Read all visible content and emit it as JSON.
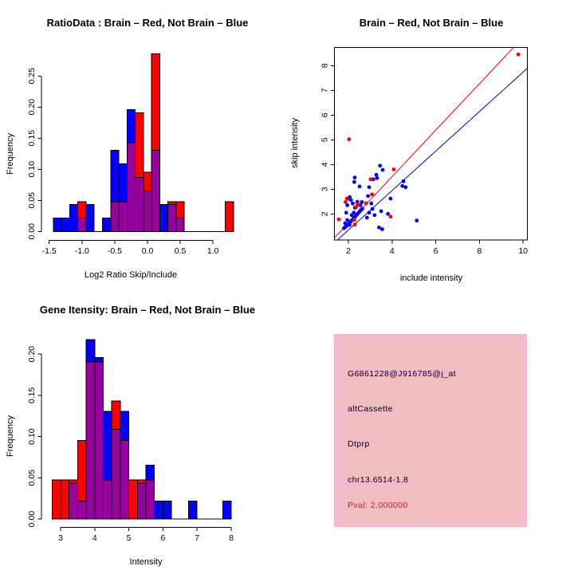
{
  "colors": {
    "red": "#ff0000",
    "blue": "#0000ff",
    "overlap_purple": "#98009d",
    "axis": "#000000",
    "info_box_pink": "#ffc0cb",
    "pval_red": "#b22233"
  },
  "chart_data": [
    {
      "type": "bar",
      "subtype": "overlaid-histogram",
      "title": "RatioData : Brain – Red, Not Brain – Blue",
      "xlabel": "Log2 Ratio Skip/Include",
      "ylabel": "Frequency",
      "xlim": [
        -1.62,
        1.43
      ],
      "ylim": [
        0,
        0.2857
      ],
      "xticks": [
        -1.5,
        -1.0,
        -0.5,
        0.0,
        0.5,
        1.0
      ],
      "xtick_labels": [
        "-1.5",
        "-1.0",
        "-0.5",
        "0.0",
        "0.5",
        "1.0"
      ],
      "yticks": [
        0.0,
        0.05,
        0.1,
        0.15,
        0.2,
        0.25
      ],
      "ytick_labels": [
        "0.00",
        "0.05",
        "0.10",
        "0.15",
        "0.20",
        "0.25"
      ],
      "grid": false,
      "legend": "encoded in title: Brain = red, Not Brain = blue, overlap = purple",
      "bin_width": 0.125,
      "series": [
        {
          "name": "Brain",
          "color": "#ff0000"
        },
        {
          "name": "Not Brain",
          "color": "#0000ff"
        }
      ],
      "bins": [
        {
          "x0": -1.4375,
          "blue": 0.0217,
          "red": 0
        },
        {
          "x0": -1.3125,
          "blue": 0.0217,
          "red": 0
        },
        {
          "x0": -1.1875,
          "blue": 0.0435,
          "red": 0
        },
        {
          "x0": -1.0625,
          "blue": 0.0217,
          "red": 0.0476
        },
        {
          "x0": -0.9375,
          "blue": 0.0435,
          "red": 0
        },
        {
          "x0": -0.8125,
          "blue": 0,
          "red": 0
        },
        {
          "x0": -0.6875,
          "blue": 0.0217,
          "red": 0
        },
        {
          "x0": -0.5625,
          "blue": 0.1304,
          "red": 0.0476
        },
        {
          "x0": -0.4375,
          "blue": 0.1087,
          "red": 0.0476
        },
        {
          "x0": -0.3125,
          "blue": 0.1957,
          "red": 0.1429
        },
        {
          "x0": -0.1875,
          "blue": 0.087,
          "red": 0.1905
        },
        {
          "x0": -0.0625,
          "blue": 0.0652,
          "red": 0.0952
        },
        {
          "x0": 0.0625,
          "blue": 0.1304,
          "red": 0.2857
        },
        {
          "x0": 0.1875,
          "blue": 0.0435,
          "red": 0
        },
        {
          "x0": 0.3125,
          "blue": 0.0435,
          "red": 0.0476
        },
        {
          "x0": 0.4375,
          "blue": 0.0217,
          "red": 0.0476
        },
        {
          "x0": 0.5625,
          "blue": 0,
          "red": 0
        },
        {
          "x0": 0.6875,
          "blue": 0,
          "red": 0
        },
        {
          "x0": 0.8125,
          "blue": 0,
          "red": 0
        },
        {
          "x0": 0.9375,
          "blue": 0,
          "red": 0
        },
        {
          "x0": 1.0625,
          "blue": 0,
          "red": 0
        },
        {
          "x0": 1.1875,
          "blue": 0,
          "red": 0.0476
        }
      ]
    },
    {
      "type": "scatter",
      "title": "Brain – Red, Not Brain – Blue",
      "xlabel": "include intensity",
      "ylabel": "skip intensity",
      "xlim": [
        1.35,
        10.2
      ],
      "ylim": [
        0.95,
        8.74
      ],
      "xticks": [
        2,
        4,
        6,
        8,
        10
      ],
      "xtick_labels": [
        "2",
        "4",
        "6",
        "8",
        "10"
      ],
      "yticks": [
        2,
        3,
        4,
        5,
        6,
        7,
        8
      ],
      "ytick_labels": [
        "2",
        "3",
        "4",
        "5",
        "6",
        "7",
        "8"
      ],
      "grid": false,
      "box": true,
      "lines": [
        {
          "name": "brain-fit-line",
          "color": "#ff0000",
          "points": [
            [
              1.354,
              1.023
            ],
            [
              9.564,
              8.74
            ]
          ]
        },
        {
          "name": "notbrain-fit-line",
          "color": "#0000cd",
          "points": [
            [
              1.506,
              0.95
            ],
            [
              10.2,
              7.9
            ]
          ]
        }
      ],
      "series": [
        {
          "name": "Not Brain",
          "color": "#0000ff",
          "points": [
            [
              1.8,
              1.42
            ],
            [
              1.86,
              1.47
            ],
            [
              1.92,
              1.52
            ],
            [
              1.98,
              1.57
            ],
            [
              2.04,
              1.62
            ],
            [
              2.1,
              1.68
            ],
            [
              2.16,
              1.74
            ],
            [
              2.22,
              1.8
            ],
            [
              2.28,
              1.86
            ],
            [
              2.34,
              1.92
            ],
            [
              2.4,
              1.98
            ],
            [
              2.46,
              2.04
            ],
            [
              2.52,
              2.1
            ],
            [
              2.58,
              2.16
            ],
            [
              2.64,
              2.21
            ],
            [
              1.85,
              1.62
            ],
            [
              1.95,
              1.75
            ],
            [
              2.05,
              1.55
            ],
            [
              2.15,
              1.95
            ],
            [
              2.25,
              2.05
            ],
            [
              1.9,
              2.05
            ],
            [
              1.95,
              2.35
            ],
            [
              2.0,
              2.62
            ],
            [
              2.06,
              2.68
            ],
            [
              2.12,
              2.56
            ],
            [
              2.2,
              2.42
            ],
            [
              2.41,
              2.49
            ],
            [
              2.55,
              2.35
            ],
            [
              2.62,
              2.48
            ],
            [
              2.3,
              2.25
            ],
            [
              2.9,
              2.72
            ],
            [
              2.95,
              2.05
            ],
            [
              2.85,
              1.85
            ],
            [
              3.05,
              2.42
            ],
            [
              3.1,
              2.2
            ],
            [
              3.2,
              1.95
            ],
            [
              3.5,
              2.11
            ],
            [
              3.81,
              2.0
            ],
            [
              3.93,
              2.62
            ],
            [
              2.27,
              3.29
            ],
            [
              2.29,
              3.47
            ],
            [
              2.51,
              3.11
            ],
            [
              2.95,
              3.08
            ],
            [
              3.14,
              3.4
            ],
            [
              3.31,
              3.45
            ],
            [
              3.28,
              3.58
            ],
            [
              3.45,
              3.95
            ],
            [
              3.57,
              3.78
            ],
            [
              4.47,
              3.13
            ],
            [
              4.52,
              3.32
            ],
            [
              4.62,
              3.08
            ],
            [
              3.4,
              1.45
            ],
            [
              3.55,
              1.38
            ],
            [
              5.13,
              1.73
            ]
          ]
        },
        {
          "name": "Brain",
          "color": "#ff0000",
          "points": [
            [
              2.03,
              5.02
            ],
            [
              9.78,
              8.45
            ],
            [
              4.08,
              3.8
            ],
            [
              3.02,
              3.4
            ],
            [
              3.08,
              2.79
            ],
            [
              2.81,
              2.43
            ],
            [
              2.35,
              2.27
            ],
            [
              2.42,
              2.38
            ],
            [
              1.87,
              2.48
            ],
            [
              1.93,
              2.62
            ],
            [
              1.56,
              1.78
            ],
            [
              2.29,
              1.57
            ],
            [
              3.93,
              1.89
            ],
            [
              2.27,
              1.76
            ]
          ]
        }
      ]
    },
    {
      "type": "bar",
      "subtype": "overlaid-histogram",
      "title": "Gene Itensity: Brain – Red, Not Brain – Blue",
      "xlabel": "Intensity",
      "ylabel": "Frequency",
      "xlim": [
        2.7,
        8.1
      ],
      "ylim": [
        0,
        0.2174
      ],
      "xticks": [
        3,
        4,
        5,
        6,
        7,
        8
      ],
      "xtick_labels": [
        "3",
        "4",
        "5",
        "6",
        "7",
        "8"
      ],
      "yticks": [
        0.0,
        0.05,
        0.1,
        0.15,
        0.2
      ],
      "ytick_labels": [
        "0.00",
        "0.05",
        "0.10",
        "0.15",
        "0.20"
      ],
      "grid": false,
      "legend": "encoded in title: Brain = red, Not Brain = blue, overlap = purple",
      "bin_width": 0.25,
      "series": [
        {
          "name": "Brain",
          "color": "#ff0000"
        },
        {
          "name": "Not Brain",
          "color": "#0000ff"
        }
      ],
      "bins": [
        {
          "x0": 2.75,
          "blue": 0,
          "red": 0.0476
        },
        {
          "x0": 3.0,
          "blue": 0,
          "red": 0.0476
        },
        {
          "x0": 3.25,
          "blue": 0.0435,
          "red": 0.0476
        },
        {
          "x0": 3.5,
          "blue": 0.0217,
          "red": 0.0952
        },
        {
          "x0": 3.75,
          "blue": 0.2174,
          "red": 0.1905
        },
        {
          "x0": 4.0,
          "blue": 0.1957,
          "red": 0.1905
        },
        {
          "x0": 4.25,
          "blue": 0.1304,
          "red": 0.0476
        },
        {
          "x0": 4.5,
          "blue": 0.1087,
          "red": 0.1429
        },
        {
          "x0": 4.75,
          "blue": 0.1304,
          "red": 0.0952
        },
        {
          "x0": 5.0,
          "blue": 0,
          "red": 0.0476
        },
        {
          "x0": 5.25,
          "blue": 0.0435,
          "red": 0.0476
        },
        {
          "x0": 5.5,
          "blue": 0.0652,
          "red": 0.0476
        },
        {
          "x0": 5.75,
          "blue": 0.0217,
          "red": 0
        },
        {
          "x0": 6.0,
          "blue": 0.0217,
          "red": 0
        },
        {
          "x0": 6.25,
          "blue": 0,
          "red": 0
        },
        {
          "x0": 6.5,
          "blue": 0,
          "red": 0
        },
        {
          "x0": 6.75,
          "blue": 0.0217,
          "red": 0
        },
        {
          "x0": 7.0,
          "blue": 0,
          "red": 0
        },
        {
          "x0": 7.25,
          "blue": 0,
          "red": 0
        },
        {
          "x0": 7.5,
          "blue": 0,
          "red": 0
        },
        {
          "x0": 7.75,
          "blue": 0.0217,
          "red": 0
        }
      ]
    }
  ],
  "info_box": {
    "probe_id": "G6861228@J916785@j_at",
    "event_type": "altCassette",
    "gene": "Dtprp",
    "location": "chr13.6514-1.8",
    "pval": "Pval: 2.000000"
  }
}
